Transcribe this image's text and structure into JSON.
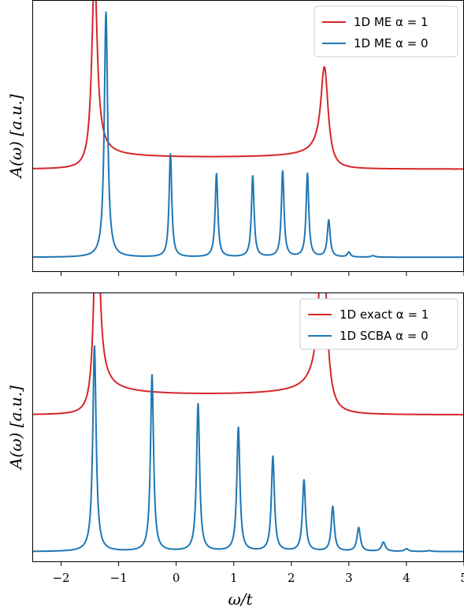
{
  "colors": {
    "red": "#d62728",
    "blue": "#1f77b4"
  },
  "chart_data": [
    {
      "type": "line",
      "panel": "top",
      "xlim": [
        -2.5,
        5
      ],
      "ylabel": "A(ω) [a.u.]",
      "xlabel": "",
      "x_ticks": [
        -2,
        -1,
        0,
        1,
        2,
        3,
        4,
        5
      ],
      "x_tick_labels": [],
      "y_ticks": [],
      "grid": false,
      "legend": "top-right",
      "series": [
        {
          "name": "1D ME α = 1",
          "color": "red",
          "kind": "band",
          "baseline": 0.36,
          "band": [
            -1.42,
            2.58
          ],
          "edge_peaks": [
            [
              -1.42,
              0.8,
              0.055
            ],
            [
              2.58,
              0.4,
              0.075
            ]
          ],
          "plateau_height": 0.05
        },
        {
          "name": "1D ME α = 0",
          "color": "blue",
          "kind": "peaks",
          "baseline": 0.0,
          "peaks": [
            [
              -1.22,
              1.0,
              0.035
            ],
            [
              -0.1,
              0.42,
              0.028
            ],
            [
              0.7,
              0.34,
              0.028
            ],
            [
              1.33,
              0.33,
              0.028
            ],
            [
              1.85,
              0.35,
              0.028
            ],
            [
              2.28,
              0.34,
              0.028
            ],
            [
              2.65,
              0.15,
              0.03
            ],
            [
              3.0,
              0.02,
              0.03
            ],
            [
              3.42,
              0.006,
              0.04
            ]
          ]
        }
      ]
    },
    {
      "type": "line",
      "panel": "bottom",
      "xlim": [
        -2.5,
        5
      ],
      "ylabel": "A(ω) [a.u.]",
      "xlabel": "ω/t",
      "x_ticks": [
        -2,
        -1,
        0,
        1,
        2,
        3,
        4,
        5
      ],
      "x_tick_labels": [
        "−2",
        "−1",
        "0",
        "1",
        "2",
        "3",
        "4",
        "5"
      ],
      "y_ticks": [],
      "grid": false,
      "legend": "top-right",
      "series": [
        {
          "name": "1D exact α = 1",
          "color": "red",
          "kind": "band",
          "baseline": 0.52,
          "band": [
            -1.38,
            2.55
          ],
          "edge_peaks": [
            [
              -1.38,
              0.93,
              0.05
            ],
            [
              2.55,
              0.7,
              0.075
            ]
          ],
          "plateau_height": 0.08
        },
        {
          "name": "1D SCBA α = 0",
          "color": "blue",
          "kind": "peaks",
          "baseline": 0.0,
          "peaks": [
            [
              -1.42,
              0.78,
              0.035
            ],
            [
              -0.42,
              0.67,
              0.032
            ],
            [
              0.38,
              0.56,
              0.032
            ],
            [
              1.08,
              0.47,
              0.032
            ],
            [
              1.68,
              0.36,
              0.032
            ],
            [
              2.22,
              0.27,
              0.032
            ],
            [
              2.72,
              0.17,
              0.032
            ],
            [
              3.17,
              0.09,
              0.035
            ],
            [
              3.6,
              0.035,
              0.04
            ],
            [
              4.0,
              0.01,
              0.04
            ],
            [
              4.4,
              0.003,
              0.05
            ]
          ]
        }
      ]
    }
  ]
}
